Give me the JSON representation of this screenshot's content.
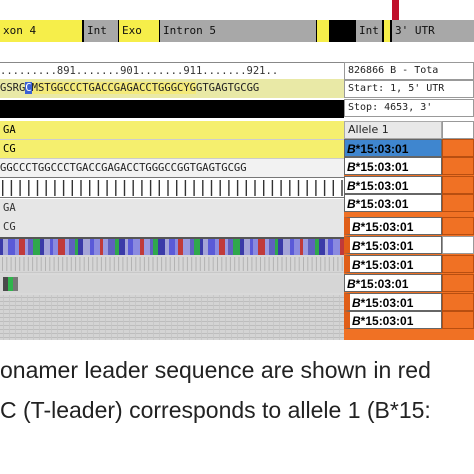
{
  "gene_track": {
    "segments": [
      "xon 4",
      "Int",
      "Exo",
      "Intron 5",
      "",
      "Int",
      "3' UTR"
    ]
  },
  "ruler": {
    "text": ".........891.......901.......911.......921.."
  },
  "sequence": {
    "pre": "GSRG",
    "blue": "C",
    "hl": "MSTGGCCCTGACCGAGACCTGGGCYG",
    "tail": "GTGAGTGCGG"
  },
  "info": {
    "sample": "826866 B - Tota",
    "start": "Start: 1, 5' UTR",
    "stop": "Stop:    4653, 3'"
  },
  "rows": {
    "ga1": "GA",
    "cg1": "CG",
    "seq2": "GGCCCTGGCCCTGACCGAGACCTGGGCCGGTGAGTGCGG",
    "ga2": "GA",
    "cg2": "CG"
  },
  "alleles": {
    "header": "Allele 1",
    "items": [
      {
        "prefix": "B",
        "suffix": "*15:03:01"
      },
      {
        "prefix": "B",
        "suffix": "*15:03:01"
      },
      {
        "prefix": "B",
        "suffix": "*15:03:01"
      },
      {
        "prefix": "B",
        "suffix": "*15:03:01"
      },
      {
        "prefix": "B",
        "suffix": "*15:03:01"
      },
      {
        "prefix": "B",
        "suffix": "*15:03:01"
      },
      {
        "prefix": "B",
        "suffix": "*15:03:01"
      },
      {
        "prefix": "B",
        "suffix": "*15:03:01"
      },
      {
        "prefix": "B",
        "suffix": "*15:03:01"
      },
      {
        "prefix": "B",
        "suffix": "*15:03:01"
      }
    ]
  },
  "caption": {
    "line1": "onamer leader sequence are shown in red",
    "line2": "C (T-leader) corresponds to allele 1 (B*15:"
  },
  "colors": {
    "accent_orange": "#f07124",
    "exon_yellow": "#f6ee4a",
    "selected_blue": "#3f86cf",
    "marker_red": "#c0102a"
  }
}
